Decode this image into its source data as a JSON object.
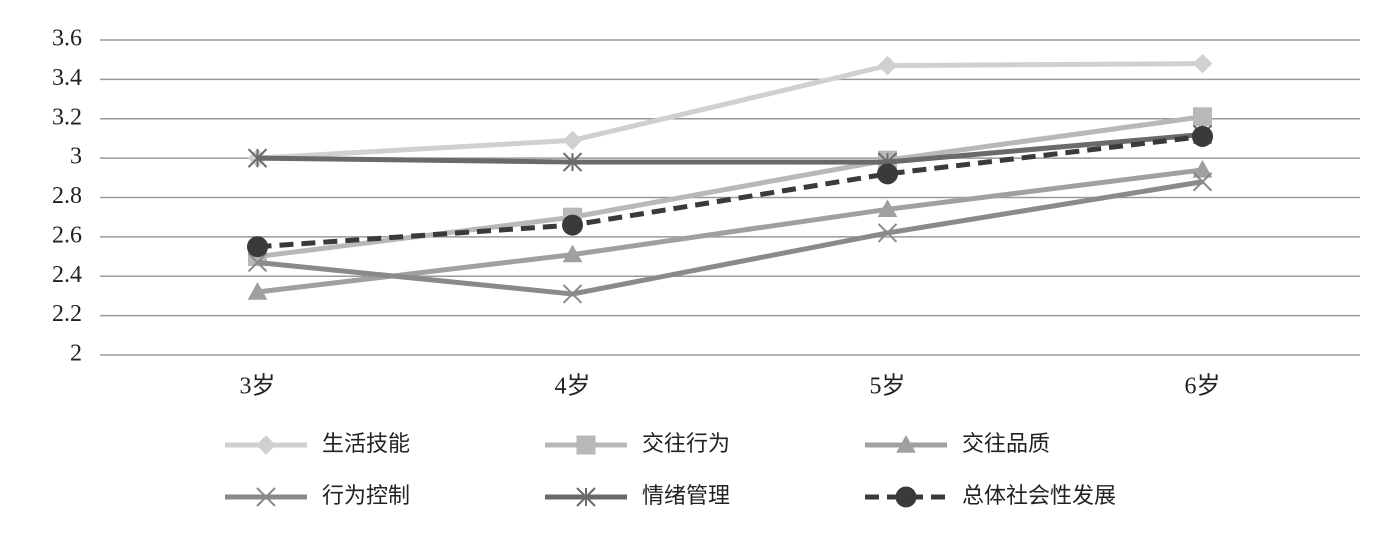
{
  "chart_data": {
    "type": "line",
    "categories": [
      "3岁",
      "4岁",
      "5岁",
      "6岁"
    ],
    "series": [
      {
        "name": "生活技能",
        "color": "#d0d0d0",
        "marker": "diamond",
        "dashed": false,
        "values": [
          3.0,
          3.09,
          3.47,
          3.48
        ]
      },
      {
        "name": "交往行为",
        "color": "#b8b8b8",
        "marker": "square",
        "dashed": false,
        "values": [
          2.5,
          2.7,
          2.99,
          3.21
        ]
      },
      {
        "name": "交往品质",
        "color": "#a0a0a0",
        "marker": "triangle",
        "dashed": false,
        "values": [
          2.32,
          2.51,
          2.74,
          2.94
        ]
      },
      {
        "name": "行为控制",
        "color": "#8a8a8a",
        "marker": "x",
        "dashed": false,
        "values": [
          2.47,
          2.31,
          2.62,
          2.88
        ]
      },
      {
        "name": "情绪管理",
        "color": "#6a6a6a",
        "marker": "star",
        "dashed": false,
        "values": [
          3.0,
          2.98,
          2.98,
          3.12
        ]
      },
      {
        "name": "总体社会性发展",
        "color": "#3a3a3a",
        "marker": "circle",
        "dashed": true,
        "values": [
          2.55,
          2.66,
          2.92,
          3.11
        ]
      }
    ],
    "ylim": [
      2,
      3.6
    ],
    "yticks": [
      2,
      2.2,
      2.4,
      2.6,
      2.8,
      3,
      3.2,
      3.4,
      3.6
    ],
    "grid": true,
    "legend": "bottom"
  }
}
